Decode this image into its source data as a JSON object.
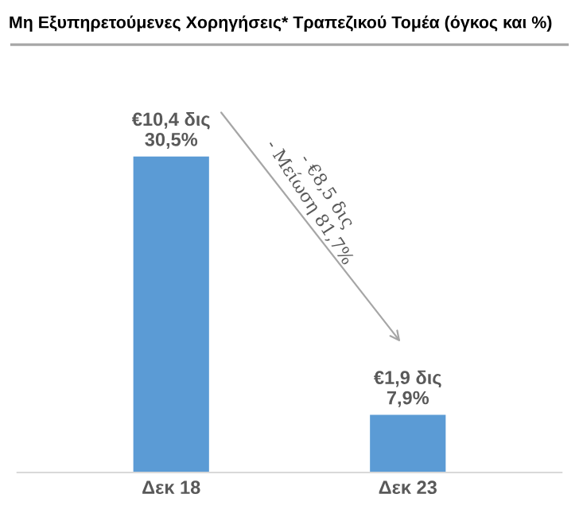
{
  "chart_data": {
    "type": "bar",
    "title": "Μη Εξυπηρετούμενες Χορηγήσεις* Τραπεζικού Τομέα (όγκος και %)",
    "categories": [
      "Δεκ 18",
      "Δεκ 23"
    ],
    "series": [
      {
        "color": "#5b9bd5",
        "values": [
          10.4,
          1.9
        ],
        "value_labels": [
          "€10,4 δις\n30,5%",
          "€1,9 δις\n7,9%"
        ]
      }
    ],
    "annotations": [
      "- €8,5 δις\n- Μείωση 81,7%"
    ],
    "grid": false,
    "legend": false
  }
}
